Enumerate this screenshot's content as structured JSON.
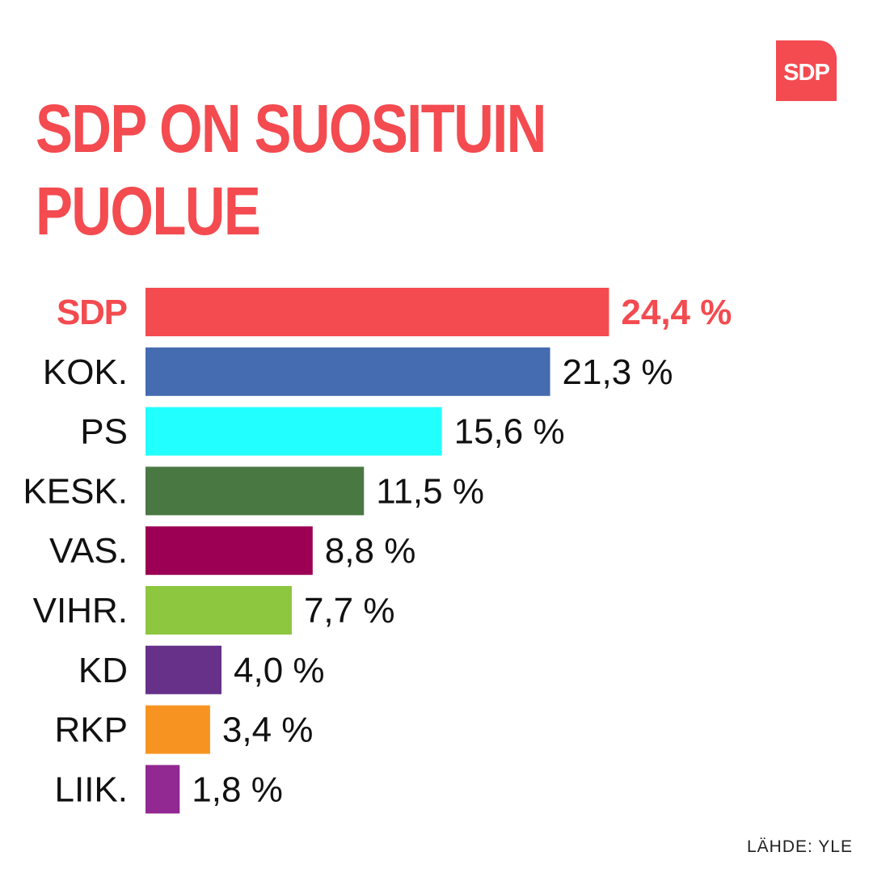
{
  "logo": {
    "text": "SDP",
    "color": "#f34b50"
  },
  "title": {
    "lines": [
      "SDP ON SUOSITUIN",
      "PUOLUE"
    ],
    "color": "#f34b50"
  },
  "source": "LÄHDE: YLE",
  "chart_data": {
    "type": "bar",
    "orientation": "horizontal",
    "categories": [
      "SDP",
      "KOK.",
      "PS",
      "KESK.",
      "VAS.",
      "VIHR.",
      "KD",
      "RKP",
      "LIIK."
    ],
    "values": [
      24.4,
      21.3,
      15.6,
      11.5,
      8.8,
      7.7,
      4.0,
      3.4,
      1.8
    ],
    "value_labels": [
      "24,4 %",
      "21,3 %",
      "15,6 %",
      "11,5 %",
      "8,8 %",
      "7,7 %",
      "4,0 %",
      "3,4 %",
      "1,8 %"
    ],
    "colors": [
      "#f34b50",
      "#456bb0",
      "#22ffff",
      "#4a7843",
      "#9c0054",
      "#8dc63f",
      "#673089",
      "#f79421",
      "#922891"
    ],
    "highlight": "SDP",
    "highlight_color": "#f34b50",
    "grid": false,
    "legend": "none"
  }
}
